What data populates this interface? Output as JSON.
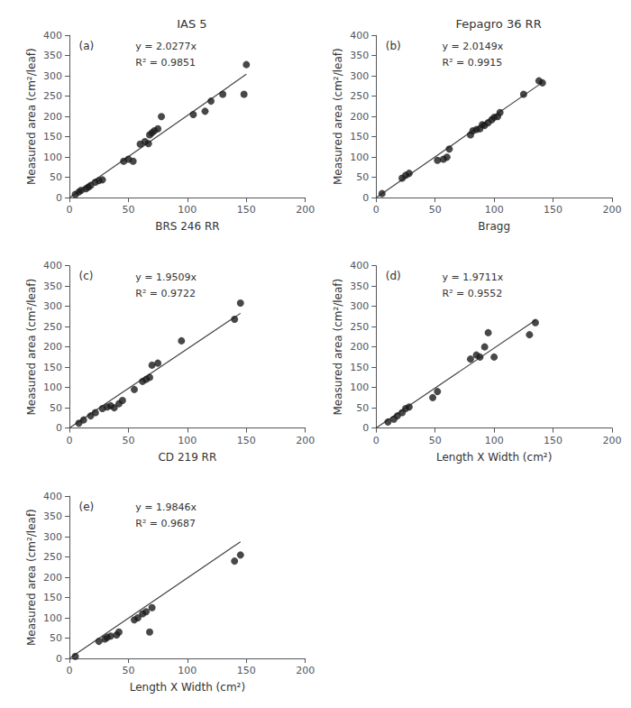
{
  "chart_data": [
    {
      "type": "scatter",
      "title": "IAS 5",
      "xlabel": "BRS 246 RR",
      "ylabel": "Measured area (cm²/leaf)",
      "annotations": [
        "(a)",
        "y = 2.0277x",
        "R² = 0.9851"
      ],
      "series": [
        {
          "type": "scatter",
          "color": "#1a1a1a",
          "x": [
            5,
            8,
            10,
            14,
            16,
            18,
            22,
            25,
            28,
            46,
            50,
            54,
            60,
            64,
            67,
            68,
            70,
            72,
            75,
            78,
            105,
            115,
            120,
            130,
            148,
            150
          ],
          "values": [
            8,
            14,
            18,
            22,
            26,
            30,
            38,
            42,
            44,
            90,
            95,
            90,
            132,
            138,
            133,
            155,
            160,
            165,
            170,
            200,
            205,
            213,
            238,
            255,
            255,
            328
          ]
        },
        {
          "type": "line",
          "color": "#444444",
          "x": [
            0,
            150
          ],
          "values": [
            0,
            304.155
          ]
        }
      ],
      "xlim": [
        0,
        200
      ],
      "ylim": [
        0,
        400
      ],
      "xticks": [
        0,
        50,
        100,
        150,
        200
      ],
      "yticks": [
        0,
        50,
        100,
        150,
        200,
        250,
        300,
        350,
        400
      ],
      "grid": false
    },
    {
      "type": "scatter",
      "title": "Fepagro 36 RR",
      "xlabel": "Bragg",
      "ylabel": "Measured area (cm²/leaf)",
      "annotations": [
        "(b)",
        "y = 2.0149x",
        "R² = 0.9915"
      ],
      "series": [
        {
          "type": "scatter",
          "color": "#1a1a1a",
          "x": [
            5,
            22,
            25,
            28,
            52,
            57,
            60,
            62,
            80,
            82,
            85,
            88,
            90,
            92,
            95,
            98,
            100,
            103,
            105,
            125,
            138,
            141
          ],
          "values": [
            10,
            48,
            55,
            60,
            92,
            95,
            100,
            120,
            155,
            165,
            168,
            170,
            180,
            178,
            185,
            192,
            198,
            200,
            210,
            255,
            288,
            283
          ]
        },
        {
          "type": "line",
          "color": "#444444",
          "x": [
            0,
            141
          ],
          "values": [
            0,
            284.1009
          ]
        }
      ],
      "xlim": [
        0,
        200
      ],
      "ylim": [
        0,
        400
      ],
      "xticks": [
        0,
        50,
        100,
        150,
        200
      ],
      "yticks": [
        0,
        50,
        100,
        150,
        200,
        250,
        300,
        350,
        400
      ],
      "grid": false
    },
    {
      "type": "scatter",
      "xlabel": "CD 219 RR",
      "ylabel": "Measured area (cm²/leaf)",
      "annotations": [
        "(c)",
        "y = 1.9509x",
        "R² = 0.9722"
      ],
      "series": [
        {
          "type": "scatter",
          "color": "#1a1a1a",
          "x": [
            8,
            12,
            18,
            22,
            28,
            32,
            35,
            38,
            42,
            45,
            55,
            62,
            65,
            68,
            70,
            75,
            95,
            140,
            145
          ],
          "values": [
            12,
            20,
            30,
            38,
            48,
            52,
            55,
            50,
            60,
            68,
            95,
            115,
            120,
            125,
            155,
            160,
            215,
            268,
            308
          ]
        },
        {
          "type": "line",
          "color": "#444444",
          "x": [
            0,
            145
          ],
          "values": [
            0,
            282.8805
          ]
        }
      ],
      "xlim": [
        0,
        200
      ],
      "ylim": [
        0,
        400
      ],
      "xticks": [
        0,
        50,
        100,
        150,
        200
      ],
      "yticks": [
        0,
        50,
        100,
        150,
        200,
        250,
        300,
        350,
        400
      ],
      "grid": false
    },
    {
      "type": "scatter",
      "xlabel": "Length X Width (cm²)",
      "ylabel": "Measured area (cm²/leaf)",
      "annotations": [
        "(d)",
        "y = 1.9711x",
        "R² = 0.9552"
      ],
      "series": [
        {
          "type": "scatter",
          "color": "#1a1a1a",
          "x": [
            10,
            15,
            18,
            22,
            25,
            28,
            48,
            52,
            80,
            85,
            88,
            92,
            95,
            100,
            130,
            135
          ],
          "values": [
            15,
            22,
            30,
            38,
            48,
            52,
            75,
            90,
            170,
            180,
            175,
            200,
            235,
            175,
            230,
            260
          ]
        },
        {
          "type": "line",
          "color": "#444444",
          "x": [
            0,
            135
          ],
          "values": [
            0,
            266.0985
          ]
        }
      ],
      "xlim": [
        0,
        200
      ],
      "ylim": [
        0,
        400
      ],
      "xticks": [
        0,
        50,
        100,
        150,
        200
      ],
      "yticks": [
        0,
        50,
        100,
        150,
        200,
        250,
        300,
        350,
        400
      ],
      "grid": false
    },
    {
      "type": "scatter",
      "xlabel": "Length X Width (cm²)",
      "ylabel": "Measured area (cm²/leaf)",
      "annotations": [
        "(e)",
        "y = 1.9846x",
        "R² = 0.9687"
      ],
      "series": [
        {
          "type": "scatter",
          "color": "#1a1a1a",
          "x": [
            5,
            25,
            30,
            32,
            35,
            40,
            42,
            55,
            58,
            62,
            65,
            68,
            70,
            140,
            145
          ],
          "values": [
            5,
            42,
            48,
            52,
            55,
            58,
            65,
            95,
            100,
            110,
            115,
            65,
            125,
            240,
            255
          ]
        },
        {
          "type": "line",
          "color": "#444444",
          "x": [
            0,
            145
          ],
          "values": [
            0,
            287.767
          ]
        }
      ],
      "xlim": [
        0,
        200
      ],
      "ylim": [
        0,
        400
      ],
      "xticks": [
        0,
        50,
        100,
        150,
        200
      ],
      "yticks": [
        0,
        50,
        100,
        150,
        200,
        250,
        300,
        350,
        400
      ],
      "grid": false
    }
  ]
}
